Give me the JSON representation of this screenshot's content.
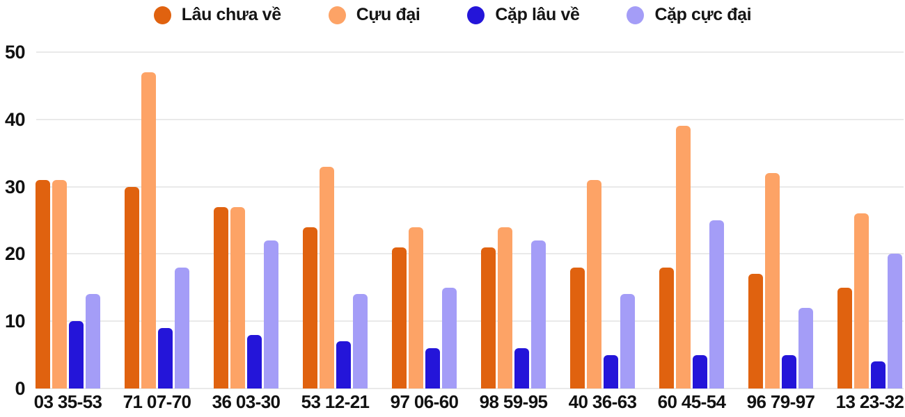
{
  "chart_data": {
    "type": "bar",
    "title": "",
    "xlabel": "",
    "ylabel": "",
    "ylim": [
      0,
      50
    ],
    "yticks": [
      0,
      10,
      20,
      30,
      40,
      50
    ],
    "grid": true,
    "legend_position": "top",
    "categories": [
      "03 35-53",
      "71 07-70",
      "36 03-30",
      "53 12-21",
      "97 06-60",
      "98 59-95",
      "40 36-63",
      "60 45-54",
      "96 79-97",
      "13 23-32"
    ],
    "series": [
      {
        "name": "Lâu chưa về",
        "color": "#e0620f",
        "values": [
          31,
          30,
          27,
          24,
          21,
          21,
          18,
          18,
          17,
          15
        ]
      },
      {
        "name": "Cựu đại",
        "color": "#fda366",
        "values": [
          31,
          47,
          27,
          33,
          24,
          24,
          31,
          39,
          32,
          26
        ]
      },
      {
        "name": "Cặp lâu về",
        "color": "#2415d9",
        "values": [
          10,
          9,
          8,
          7,
          6,
          6,
          5,
          5,
          5,
          4
        ]
      },
      {
        "name": "Cặp cực đại",
        "color": "#a49df7",
        "values": [
          14,
          18,
          22,
          14,
          15,
          22,
          14,
          25,
          12,
          20
        ]
      }
    ]
  },
  "colors": {
    "background": "#ffffff",
    "grid": "#e9e9e9",
    "text": "#111111"
  }
}
